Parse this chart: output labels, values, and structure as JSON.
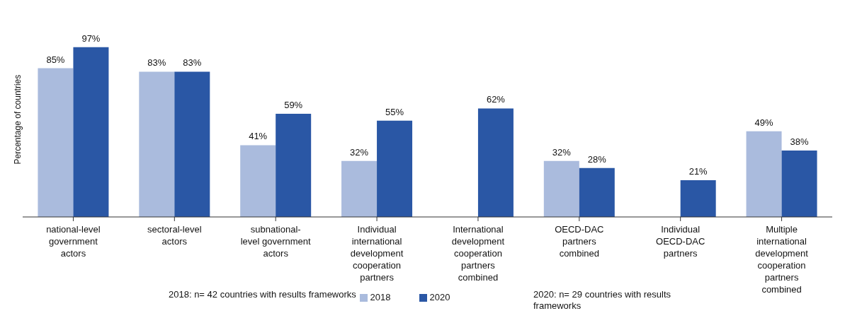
{
  "chart_data": {
    "type": "bar",
    "ylabel": "Percentage of countries",
    "categories": [
      "national-level government actors",
      "sectoral-level actors",
      "subnational-level government actors",
      "Individual international development cooperation partners",
      "International development cooperation partners combined",
      "OECD-DAC partners combined",
      "Individual OECD-DAC partners",
      "Multiple international development cooperation partners combined"
    ],
    "series": [
      {
        "name": "2018",
        "color": "#aabbdd",
        "values": [
          85,
          83,
          41,
          32,
          null,
          32,
          null,
          49
        ],
        "value_labels": [
          "85%",
          "83%",
          "41%",
          "32%",
          null,
          "32%",
          null,
          "49%"
        ]
      },
      {
        "name": "2020",
        "color": "#2a57a5",
        "values": [
          97,
          83,
          59,
          55,
          62,
          28,
          21,
          38
        ],
        "value_labels": [
          "97%",
          "83%",
          "59%",
          "55%",
          "62%",
          "28%",
          "21%",
          "38%"
        ]
      }
    ],
    "legend": "bottom",
    "grid": false,
    "annotations": [
      "2018: n= 42 countries with results frameworks",
      "2020: n= 29 countries with results frameworks"
    ]
  }
}
